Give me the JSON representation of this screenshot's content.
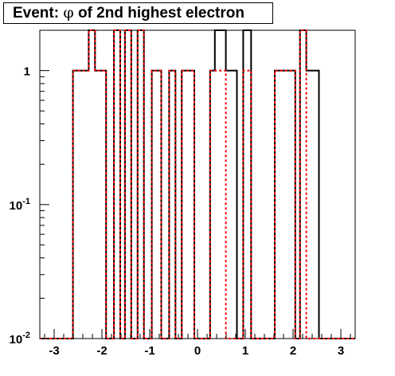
{
  "chart_data": {
    "type": "step",
    "title_prefix": "Event: ",
    "title_symbol": "φ",
    "title_suffix": " of 2nd highest electron",
    "xlabel": "",
    "ylabel": "",
    "xlim": [
      -3.3,
      3.3
    ],
    "ylog": true,
    "ylim": [
      0.01,
      2.0
    ],
    "xticks": [
      {
        "v": -3,
        "label": "-3"
      },
      {
        "v": -2,
        "label": "-2"
      },
      {
        "v": -1,
        "label": "-1"
      },
      {
        "v": 0,
        "label": "0"
      },
      {
        "v": 1,
        "label": "1"
      },
      {
        "v": 2,
        "label": "2"
      },
      {
        "v": 3,
        "label": "3"
      }
    ],
    "yticks": [
      {
        "v": 0.01,
        "base": "10",
        "exp": "-2"
      },
      {
        "v": 0.1,
        "base": "10",
        "exp": "-1"
      },
      {
        "v": 1,
        "base": "1",
        "exp": ""
      }
    ],
    "bin_edges": [
      -3.3,
      -2.607,
      -2.277,
      -2.145,
      -1.914,
      -1.749,
      -1.617,
      -1.518,
      -1.386,
      -1.254,
      -1.122,
      -0.957,
      -0.759,
      -0.594,
      -0.462,
      -0.33,
      -0.066,
      0.264,
      0.363,
      0.594,
      0.825,
      0.957,
      1.122,
      1.617,
      2.046,
      2.145,
      2.277,
      2.541,
      2.805,
      3.3
    ],
    "series": [
      {
        "color": "#000000",
        "dash": "none",
        "values": [
          0.01,
          1,
          2,
          1,
          0.01,
          2,
          0.01,
          2,
          0.01,
          2,
          0.01,
          1,
          0.01,
          1,
          0.01,
          1,
          0.01,
          1,
          2,
          1,
          0.01,
          2,
          0.01,
          1,
          0.01,
          2,
          1,
          0.01,
          0.01
        ]
      },
      {
        "color": "#ff0000",
        "dash": "3,3",
        "values": [
          0.01,
          1,
          2,
          1,
          0.01,
          2,
          0.01,
          2,
          0.01,
          2,
          0.01,
          1,
          0.01,
          1,
          0.01,
          1,
          0.01,
          1,
          1,
          0.01,
          0.01,
          1,
          0.01,
          1,
          0.01,
          2,
          0.01,
          0.01,
          0.01
        ]
      }
    ]
  }
}
